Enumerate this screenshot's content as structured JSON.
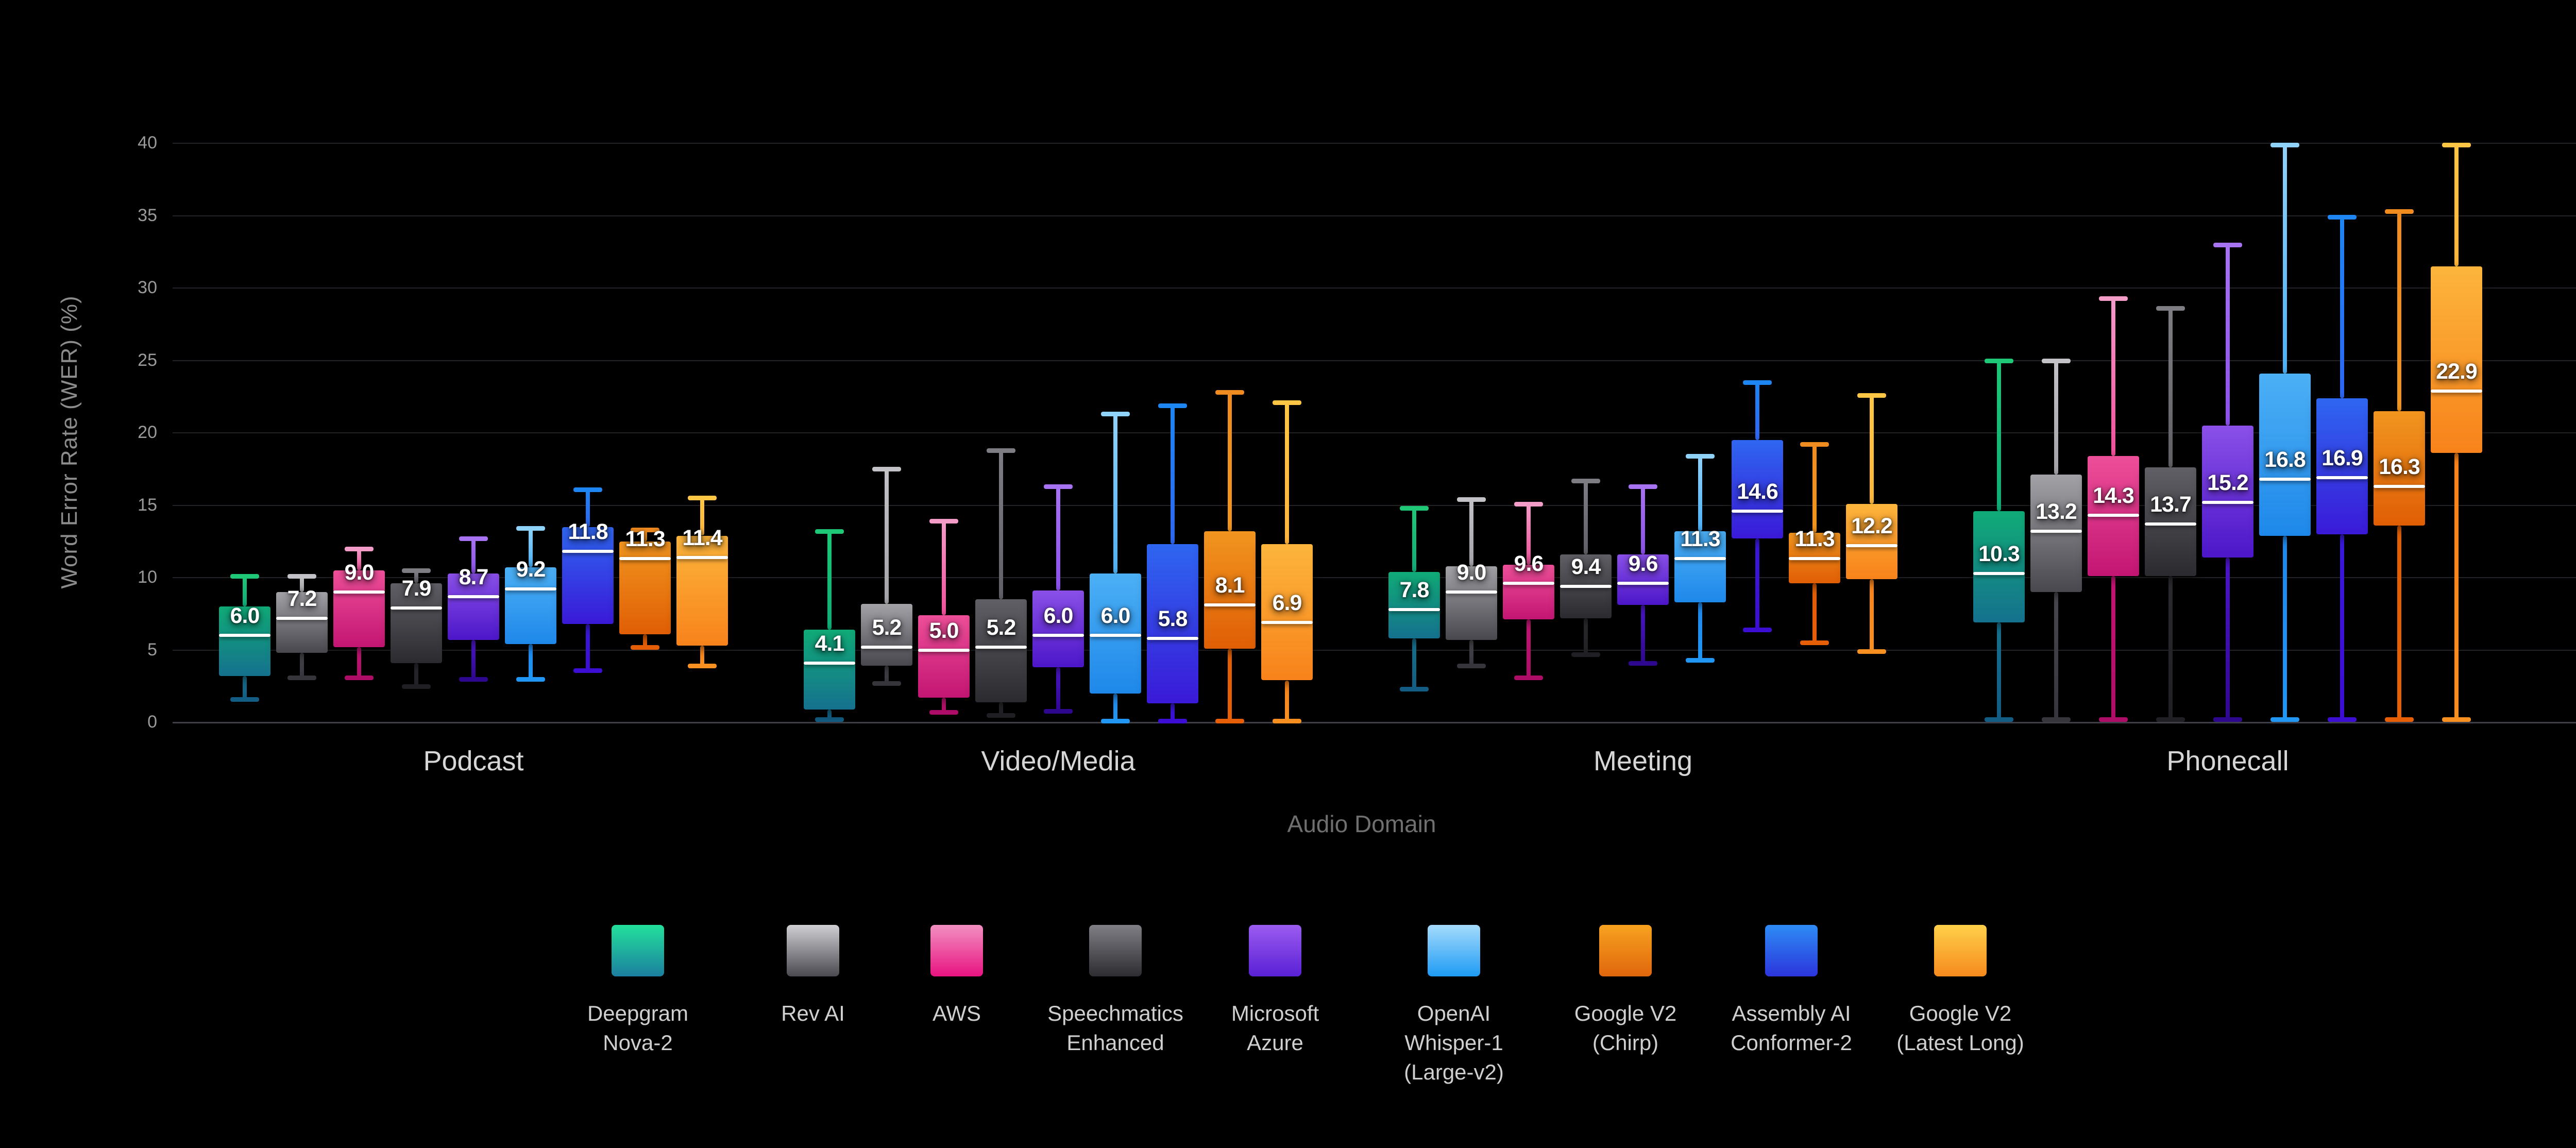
{
  "page": {
    "background": "#000000"
  },
  "y_axis": {
    "title": "Word Error Rate (WER) (%)",
    "tick_labels": [
      "0",
      "5",
      "10",
      "15",
      "20",
      "25",
      "30",
      "35",
      "40"
    ]
  },
  "x_axis": {
    "title": "Audio Domain",
    "categories": [
      "Podcast",
      "Video/Media",
      "Meeting",
      "Phonecall"
    ]
  },
  "legend": {
    "items": [
      {
        "series_key": "deepgram",
        "label_lines": [
          "Deepgram",
          "Nova-2"
        ]
      },
      {
        "series_key": "rev",
        "label_lines": [
          "Rev AI"
        ]
      },
      {
        "series_key": "aws",
        "label_lines": [
          "AWS"
        ]
      },
      {
        "series_key": "speechmatics",
        "label_lines": [
          "Speechmatics",
          "Enhanced"
        ]
      },
      {
        "series_key": "azure",
        "label_lines": [
          "Microsoft",
          "Azure"
        ]
      },
      {
        "series_key": "whisper",
        "label_lines": [
          "OpenAI",
          "Whisper-1",
          "(Large-v2)"
        ]
      },
      {
        "series_key": "chirp",
        "label_lines": [
          "Google V2",
          "(Chirp)"
        ]
      },
      {
        "series_key": "assembly",
        "label_lines": [
          "Assembly AI",
          "Conformer-2"
        ]
      },
      {
        "series_key": "latestlong",
        "label_lines": [
          "Google V2",
          "(Latest Long)"
        ]
      }
    ]
  },
  "chart_data": {
    "type": "box",
    "title": "",
    "ylabel": "Word Error Rate (WER) (%)",
    "xlabel": "Audio Domain",
    "ylim": [
      0,
      40
    ],
    "yticks": [
      0,
      5,
      10,
      15,
      20,
      25,
      30,
      35,
      40
    ],
    "grid": true,
    "legend_position": "bottom",
    "background": "#000000",
    "categories": [
      "Podcast",
      "Video/Media",
      "Meeting",
      "Phonecall"
    ],
    "series": [
      {
        "key": "deepgram",
        "name": "Deepgram Nova-2",
        "colors": {
          "cap_top": "#1ec877",
          "box_top": "#10ab77",
          "box_bottom": "#15718e",
          "cap_bottom": "#135c83",
          "legend_top": "#23e09b",
          "legend_bottom": "#1b7f9f"
        },
        "boxes": [
          {
            "min": 1.6,
            "q1": 3.2,
            "median": 6.0,
            "q3": 8.0,
            "max": 10.1
          },
          {
            "min": 0.2,
            "q1": 0.9,
            "median": 4.1,
            "q3": 6.4,
            "max": 13.2
          },
          {
            "min": 2.3,
            "q1": 5.8,
            "median": 7.8,
            "q3": 10.4,
            "max": 14.8
          },
          {
            "min": 0.2,
            "q1": 6.9,
            "median": 10.3,
            "q3": 14.6,
            "max": 25.0
          }
        ]
      },
      {
        "key": "rev",
        "name": "Rev AI",
        "colors": {
          "cap_top": "#c2c2c7",
          "box_top": "#a2a2a7",
          "box_bottom": "#47474d",
          "cap_bottom": "#35353b",
          "legend_top": "#cfcfd4",
          "legend_bottom": "#4a4a50"
        },
        "boxes": [
          {
            "min": 3.1,
            "q1": 4.8,
            "median": 7.2,
            "q3": 9.0,
            "max": 10.1
          },
          {
            "min": 2.7,
            "q1": 3.9,
            "median": 5.2,
            "q3": 8.2,
            "max": 17.5
          },
          {
            "min": 3.9,
            "q1": 5.7,
            "median": 9.0,
            "q3": 10.8,
            "max": 15.4
          },
          {
            "min": 0.2,
            "q1": 9.0,
            "median": 13.2,
            "q3": 17.1,
            "max": 25.0
          }
        ]
      },
      {
        "key": "aws",
        "name": "AWS",
        "colors": {
          "cap_top": "#f49cc8",
          "box_top": "#ee4f99",
          "box_bottom": "#c31573",
          "cap_bottom": "#ad0d66",
          "legend_top": "#f290c2",
          "legend_bottom": "#e81380"
        },
        "boxes": [
          {
            "min": 3.1,
            "q1": 5.2,
            "median": 9.0,
            "q3": 10.5,
            "max": 12.0
          },
          {
            "min": 0.7,
            "q1": 1.7,
            "median": 5.0,
            "q3": 7.4,
            "max": 13.9
          },
          {
            "min": 3.1,
            "q1": 7.1,
            "median": 9.6,
            "q3": 10.9,
            "max": 15.1
          },
          {
            "min": 0.2,
            "q1": 10.1,
            "median": 14.3,
            "q3": 18.4,
            "max": 29.3
          }
        ]
      },
      {
        "key": "speechmatics",
        "name": "Speechmatics Enhanced",
        "colors": {
          "cap_top": "#7d7d83",
          "box_top": "#5f5f65",
          "box_bottom": "#2a2a2f",
          "cap_bottom": "#1f1f24",
          "legend_top": "#7f7f85",
          "legend_bottom": "#2c2c31"
        },
        "boxes": [
          {
            "min": 2.5,
            "q1": 4.1,
            "median": 7.9,
            "q3": 9.6,
            "max": 10.5
          },
          {
            "min": 0.5,
            "q1": 1.4,
            "median": 5.2,
            "q3": 8.5,
            "max": 18.8
          },
          {
            "min": 4.7,
            "q1": 7.2,
            "median": 9.4,
            "q3": 11.6,
            "max": 16.7
          },
          {
            "min": 0.2,
            "q1": 10.1,
            "median": 13.7,
            "q3": 17.6,
            "max": 28.6
          }
        ]
      },
      {
        "key": "azure",
        "name": "Microsoft Azure",
        "colors": {
          "cap_top": "#a873f3",
          "box_top": "#8a50e8",
          "box_bottom": "#4c16c9",
          "cap_bottom": "#2e078f",
          "legend_top": "#9b5cf0",
          "legend_bottom": "#5a20d5"
        },
        "boxes": [
          {
            "min": 3.0,
            "q1": 5.7,
            "median": 8.7,
            "q3": 10.3,
            "max": 12.7
          },
          {
            "min": 0.8,
            "q1": 3.8,
            "median": 6.0,
            "q3": 9.1,
            "max": 16.3
          },
          {
            "min": 4.1,
            "q1": 8.1,
            "median": 9.6,
            "q3": 11.6,
            "max": 16.3
          },
          {
            "min": 0.2,
            "q1": 11.4,
            "median": 15.2,
            "q3": 20.5,
            "max": 33.0
          }
        ]
      },
      {
        "key": "whisper",
        "name": "OpenAI Whisper-1 (Large-v2)",
        "colors": {
          "cap_top": "#8fd2fa",
          "box_top": "#4cb0f5",
          "box_bottom": "#1e88ea",
          "cap_bottom": "#2196f3",
          "legend_top": "#a5dbfc",
          "legend_bottom": "#1e9bf4"
        },
        "boxes": [
          {
            "min": 3.0,
            "q1": 5.4,
            "median": 9.2,
            "q3": 10.7,
            "max": 13.4
          },
          {
            "min": 0.1,
            "q1": 2.0,
            "median": 6.0,
            "q3": 10.3,
            "max": 21.3
          },
          {
            "min": 4.3,
            "q1": 8.3,
            "median": 11.3,
            "q3": 13.2,
            "max": 18.4
          },
          {
            "min": 0.2,
            "q1": 12.9,
            "median": 16.8,
            "q3": 24.1,
            "max": 39.9
          }
        ]
      },
      {
        "key": "assembly",
        "name": "Assembly AI Conformer-2",
        "colors": {
          "cap_top": "#1d86f3",
          "box_top": "#2e66f0",
          "box_bottom": "#3a19d8",
          "cap_bottom": "#3c0ed3",
          "legend_top": "#2d8cf5",
          "legend_bottom": "#2c35dc"
        },
        "boxes": [
          {
            "min": 3.6,
            "q1": 6.8,
            "median": 11.8,
            "q3": 13.5,
            "max": 16.1
          },
          {
            "min": 0.1,
            "q1": 1.3,
            "median": 5.8,
            "q3": 12.3,
            "max": 21.9
          },
          {
            "min": 6.4,
            "q1": 12.7,
            "median": 14.6,
            "q3": 19.5,
            "max": 23.5
          },
          {
            "min": 0.2,
            "q1": 13.0,
            "median": 16.9,
            "q3": 22.4,
            "max": 34.9
          }
        ]
      },
      {
        "key": "chirp",
        "name": "Google V2 (Chirp)",
        "colors": {
          "cap_top": "#f08b20",
          "box_top": "#f1951f",
          "box_bottom": "#e05e05",
          "cap_bottom": "#e65f06",
          "legend_top": "#f7a21f",
          "legend_bottom": "#e0660c"
        },
        "boxes": [
          {
            "min": 5.2,
            "q1": 6.1,
            "median": 11.3,
            "q3": 12.5,
            "max": 13.3
          },
          {
            "min": 0.1,
            "q1": 5.1,
            "median": 8.1,
            "q3": 13.2,
            "max": 22.8
          },
          {
            "min": 5.5,
            "q1": 9.6,
            "median": 11.3,
            "q3": 13.1,
            "max": 19.2
          },
          {
            "min": 0.2,
            "q1": 13.6,
            "median": 16.3,
            "q3": 21.5,
            "max": 35.3
          }
        ]
      },
      {
        "key": "latestlong",
        "name": "Google V2 (Latest Long)",
        "colors": {
          "cap_top": "#ffc645",
          "box_top": "#fcb53c",
          "box_bottom": "#f8821b",
          "cap_bottom": "#f88f21",
          "legend_top": "#ffd04a",
          "legend_bottom": "#f68a1d"
        },
        "boxes": [
          {
            "min": 3.9,
            "q1": 5.3,
            "median": 11.4,
            "q3": 12.9,
            "max": 15.5
          },
          {
            "min": 0.1,
            "q1": 2.9,
            "median": 6.9,
            "q3": 12.3,
            "max": 22.1
          },
          {
            "min": 4.9,
            "q1": 9.9,
            "median": 12.2,
            "q3": 15.1,
            "max": 22.6
          },
          {
            "min": 0.2,
            "q1": 18.6,
            "median": 22.9,
            "q3": 31.5,
            "max": 39.9
          }
        ]
      }
    ]
  }
}
